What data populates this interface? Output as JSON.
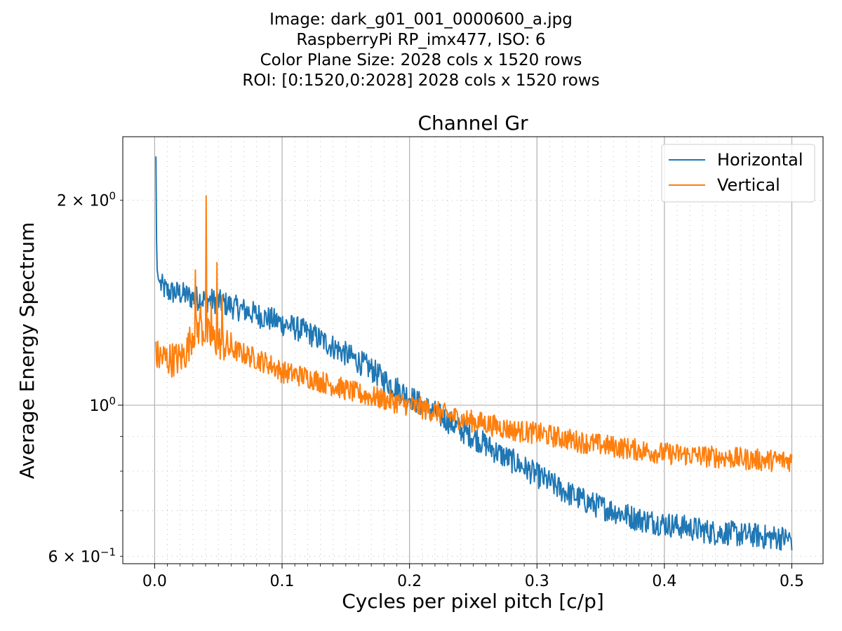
{
  "header": {
    "lines": [
      "Image: dark_g01_001_0000600_a.jpg",
      "RaspberryPi RP_imx477, ISO: 6",
      "Color Plane Size: 2028 cols x 1520 rows",
      "ROI: [0:1520,0:2028] 2028 cols x 1520 rows"
    ]
  },
  "colors": {
    "horizontal": "#1f77b4",
    "vertical": "#ff7f0e",
    "grid": "#b0b0b0",
    "axis": "#000000"
  },
  "chart_data": {
    "type": "line",
    "title": "Channel Gr",
    "xlabel": "Cycles per pixel pitch [c/p]",
    "ylabel": "Average Energy Spectrum",
    "xlim": [
      -0.025,
      0.5245
    ],
    "ylim": [
      0.585,
      2.48
    ],
    "yscale": "log",
    "grid": true,
    "legend": "top-right",
    "x_ticks": [
      "0.0",
      "0.1",
      "0.2",
      "0.3",
      "0.4",
      "0.5"
    ],
    "y_ticks": [
      {
        "value": 0.6,
        "label": "6 × 10",
        "exp": "−1"
      },
      {
        "value": 1.0,
        "label": "10",
        "exp": "0"
      },
      {
        "value": 2.0,
        "label": "2 × 10",
        "exp": "0"
      }
    ],
    "series": [
      {
        "name": "Horizontal",
        "x": [
          0.001,
          0.0015,
          0.002,
          0.003,
          0.005,
          0.01,
          0.02,
          0.03,
          0.04,
          0.05,
          0.06,
          0.07,
          0.08,
          0.09,
          0.1,
          0.11,
          0.12,
          0.13,
          0.14,
          0.15,
          0.16,
          0.17,
          0.18,
          0.19,
          0.2,
          0.21,
          0.22,
          0.23,
          0.24,
          0.25,
          0.26,
          0.27,
          0.28,
          0.29,
          0.3,
          0.31,
          0.32,
          0.33,
          0.34,
          0.35,
          0.36,
          0.37,
          0.38,
          0.39,
          0.4,
          0.41,
          0.42,
          0.43,
          0.44,
          0.45,
          0.46,
          0.47,
          0.48,
          0.49,
          0.5
        ],
        "y": [
          2.32,
          1.75,
          1.58,
          1.53,
          1.5,
          1.47,
          1.46,
          1.44,
          1.43,
          1.42,
          1.4,
          1.38,
          1.36,
          1.34,
          1.32,
          1.3,
          1.28,
          1.25,
          1.22,
          1.19,
          1.16,
          1.13,
          1.09,
          1.06,
          1.03,
          1.0,
          0.975,
          0.95,
          0.92,
          0.9,
          0.875,
          0.85,
          0.83,
          0.81,
          0.79,
          0.77,
          0.75,
          0.735,
          0.72,
          0.71,
          0.7,
          0.69,
          0.68,
          0.675,
          0.67,
          0.665,
          0.66,
          0.655,
          0.65,
          0.65,
          0.645,
          0.645,
          0.64,
          0.64,
          0.635
        ]
      },
      {
        "name": "Vertical",
        "x": [
          0.001,
          0.01,
          0.02,
          0.025,
          0.03,
          0.035,
          0.04,
          0.045,
          0.05,
          0.06,
          0.07,
          0.08,
          0.09,
          0.1,
          0.12,
          0.14,
          0.16,
          0.18,
          0.2,
          0.22,
          0.24,
          0.26,
          0.28,
          0.3,
          0.32,
          0.34,
          0.36,
          0.38,
          0.4,
          0.42,
          0.44,
          0.46,
          0.48,
          0.5
        ],
        "y": [
          1.18,
          1.17,
          1.17,
          1.2,
          1.28,
          1.3,
          1.28,
          1.25,
          1.24,
          1.21,
          1.19,
          1.17,
          1.15,
          1.12,
          1.1,
          1.07,
          1.04,
          1.02,
          1.0,
          0.98,
          0.955,
          0.94,
          0.92,
          0.91,
          0.895,
          0.88,
          0.87,
          0.86,
          0.85,
          0.845,
          0.84,
          0.835,
          0.83,
          0.83
        ],
        "peaks": [
          {
            "x": 0.0405,
            "y": 2.03
          },
          {
            "x": 0.049,
            "y": 1.62
          },
          {
            "x": 0.032,
            "y": 1.58
          },
          {
            "x": 0.0445,
            "y": 1.42
          },
          {
            "x": 0.053,
            "y": 1.45
          },
          {
            "x": 0.036,
            "y": 1.4
          }
        ]
      }
    ]
  }
}
